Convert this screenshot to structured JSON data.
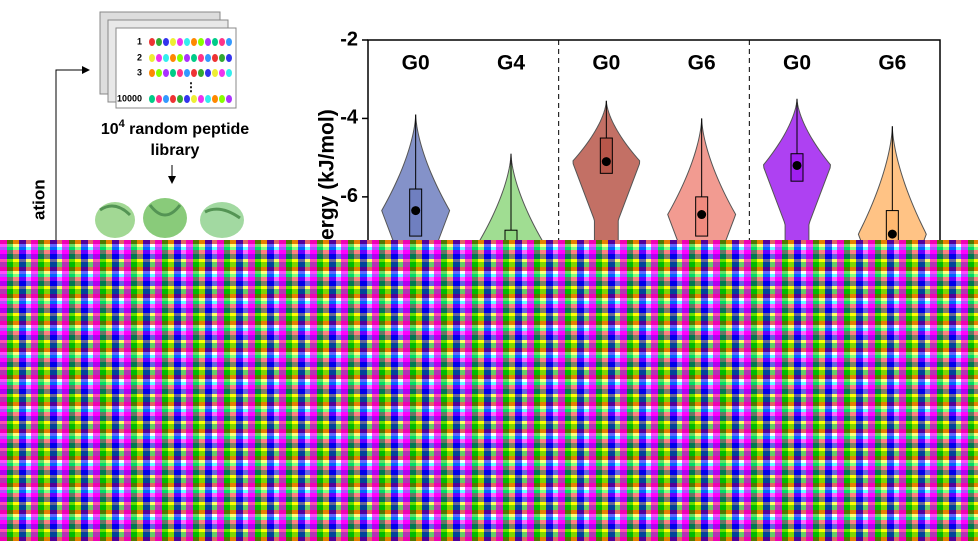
{
  "diagram": {
    "card_rows": [
      "1",
      "2",
      "3",
      "10000"
    ],
    "library_label": {
      "base": "10",
      "exponent": "4",
      "rest": " random peptide",
      "line2": "library"
    },
    "side_label": "ation"
  },
  "chart_data": {
    "type": "violin",
    "y_label": "ergy (kJ/mol)",
    "categories": [
      "G0",
      "G4",
      "G0",
      "G6",
      "G0",
      "G6"
    ],
    "colors": [
      "#6f7fc0",
      "#8fd77f",
      "#b8574a",
      "#f08a7e",
      "#a020f0",
      "#ffb870"
    ],
    "max": [
      -3.9,
      -4.9,
      -3.55,
      -4.0,
      -3.5,
      -4.2
    ],
    "q3": [
      -5.8,
      -6.85,
      -4.5,
      -6.0,
      -4.9,
      -6.35
    ],
    "q1": [
      -7.0,
      null,
      -5.4,
      -7.0,
      -5.6,
      null
    ],
    "mean": [
      -6.35,
      null,
      -5.1,
      -6.45,
      -5.2,
      -6.95
    ],
    "ylim": [
      -7.1,
      -2
    ],
    "yticks": [
      -2,
      -4,
      -6
    ]
  }
}
